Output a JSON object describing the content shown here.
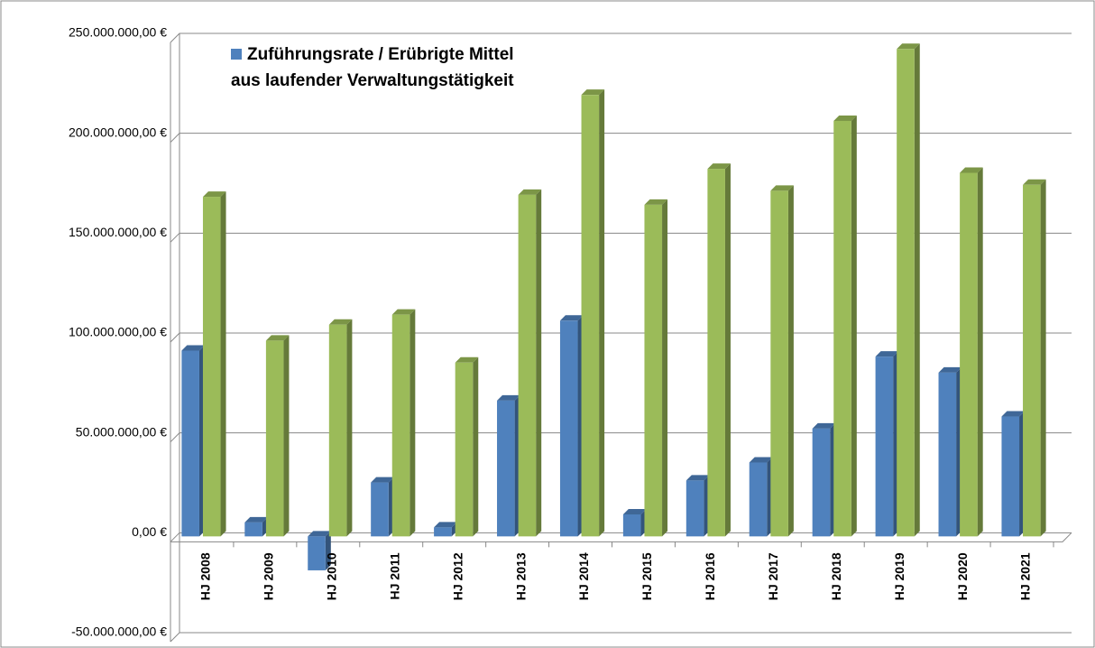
{
  "chart_data": {
    "type": "bar3d",
    "categories": [
      "HJ 2008",
      "HJ 2009",
      "HJ 2010",
      "HJ 2011",
      "HJ 2012",
      "HJ 2013",
      "HJ 2014",
      "HJ 2015",
      "HJ 2016",
      "HJ 2017",
      "HJ 2018",
      "HJ 2019",
      "HJ 2020",
      "HJ 2021"
    ],
    "series": [
      {
        "name": "Zuführungsrate / Erübrigte Mittel aus laufender Verwaltungstätigkeit",
        "color": "#4f81bd",
        "values": [
          93000000,
          7000000,
          -17000000,
          27000000,
          4500000,
          68000000,
          108000000,
          11000000,
          28000000,
          37000000,
          54000000,
          90000000,
          82000000,
          60000000
        ]
      },
      {
        "color": "#9bbb59",
        "values": [
          170000000,
          98000000,
          106000000,
          111000000,
          87000000,
          171000000,
          221000000,
          166000000,
          184000000,
          173000000,
          208000000,
          244000000,
          182000000,
          176000000
        ]
      }
    ],
    "ylim": [
      -50000000,
      250000000
    ],
    "yticks": [
      {
        "value": -50000000,
        "label": "-50.000.000,00 €"
      },
      {
        "value": 0,
        "label": "0,00 €"
      },
      {
        "value": 50000000,
        "label": "50.000.000,00 €"
      },
      {
        "value": 100000000,
        "label": "100.000.000,00 €"
      },
      {
        "value": 150000000,
        "label": "150.000.000,00 €"
      },
      {
        "value": 200000000,
        "label": "200.000.000,00 €"
      },
      {
        "value": 250000000,
        "label": "250.000.000,00 €"
      }
    ],
    "grid": true
  }
}
